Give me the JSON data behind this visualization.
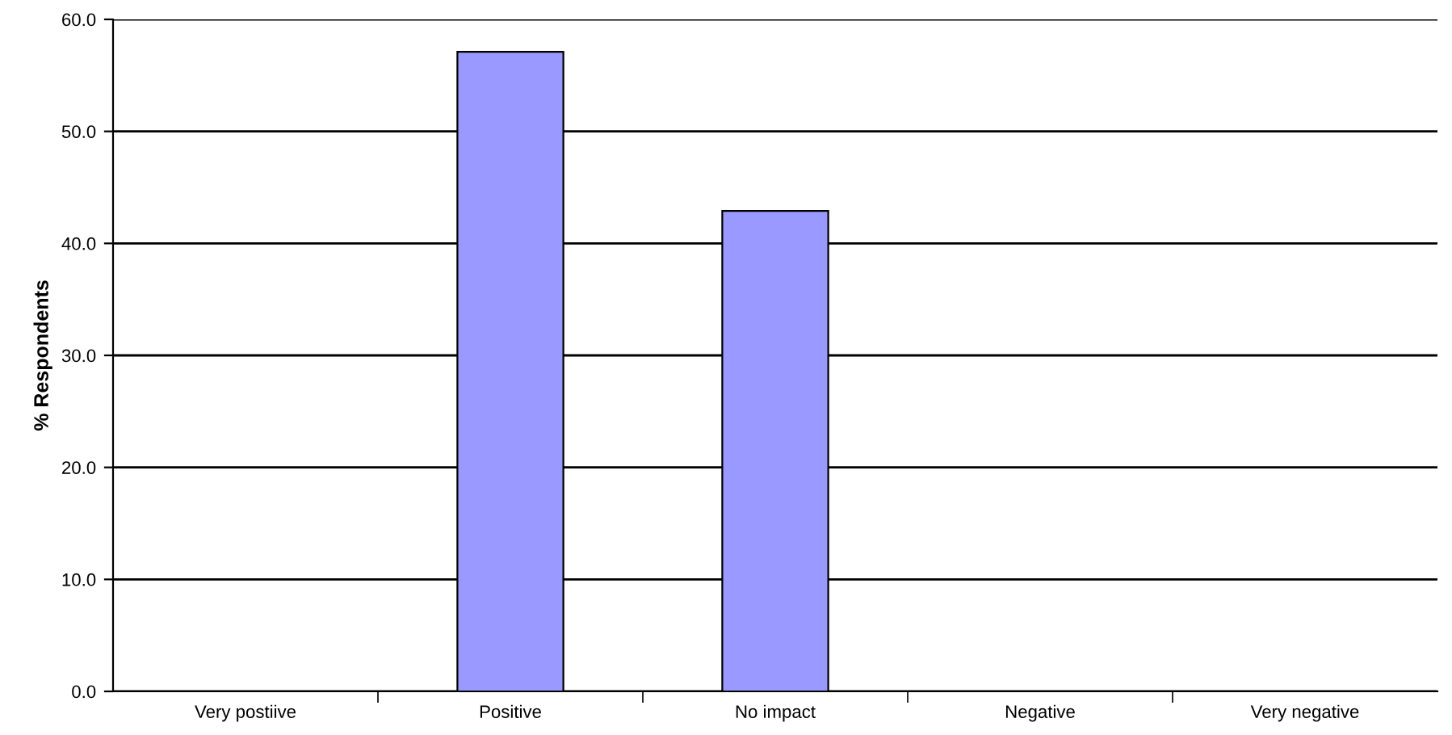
{
  "chart_data": {
    "type": "bar",
    "ylabel": "% Respondents",
    "categories": [
      "Very postiive",
      "Positive",
      "No impact",
      "Negative",
      "Very negative"
    ],
    "values": [
      0,
      57.1,
      42.9,
      0,
      0
    ],
    "color": "#9999ff",
    "ylim": [
      0,
      60
    ],
    "yticks": [
      {
        "value": 0,
        "label": "0.0"
      },
      {
        "value": 10,
        "label": "10.0"
      },
      {
        "value": 20,
        "label": "20.0"
      },
      {
        "value": 30,
        "label": "30.0"
      },
      {
        "value": 40,
        "label": "40.0"
      },
      {
        "value": 50,
        "label": "50.0"
      },
      {
        "value": 60,
        "label": "60.0"
      }
    ],
    "grid": "y"
  }
}
